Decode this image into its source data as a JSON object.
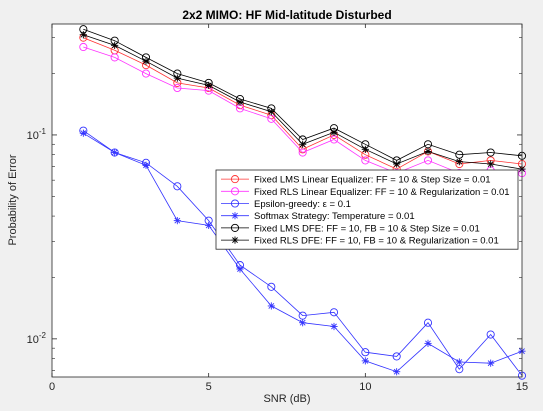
{
  "chart_data": {
    "type": "line",
    "title": "2x2 MIMO: HF Mid-latitude Disturbed",
    "xlabel": "SNR (dB)",
    "ylabel": "Probability of Error",
    "xlim": [
      0,
      15
    ],
    "ylim": [
      0.0065,
      0.35
    ],
    "yscale": "log",
    "grid": false,
    "legend_location": "east",
    "x_ticks": [
      0,
      5,
      10,
      15
    ],
    "y_ticks": [
      {
        "value": 0.01,
        "base": "10",
        "exp": "-2"
      },
      {
        "value": 0.1,
        "base": "10",
        "exp": "-1"
      }
    ],
    "x": [
      1,
      2,
      3,
      4,
      5,
      6,
      7,
      8,
      9,
      10,
      11,
      12,
      13,
      14,
      15
    ],
    "series": [
      {
        "name": "Fixed LMS Linear Equalizer: FF = 10 & Step Size = 0.01",
        "color": "#ff3333",
        "marker": "circle",
        "values": [
          0.3,
          0.26,
          0.22,
          0.18,
          0.17,
          0.14,
          0.125,
          0.085,
          0.1,
          0.08,
          0.068,
          0.083,
          0.072,
          0.075,
          0.072
        ]
      },
      {
        "name": "Fixed RLS Linear Equalizer: FF = 10 & Regularization = 0.01",
        "color": "#ff33ff",
        "marker": "circle",
        "values": [
          0.27,
          0.24,
          0.2,
          0.17,
          0.165,
          0.135,
          0.12,
          0.082,
          0.095,
          0.075,
          0.065,
          0.075,
          0.065,
          0.067,
          0.065
        ]
      },
      {
        "name": "Epsilon-greedy: ε = 0.1",
        "color": "#3333ff",
        "marker": "circle",
        "values": [
          0.105,
          0.082,
          0.073,
          0.056,
          0.038,
          0.023,
          0.018,
          0.013,
          0.0135,
          0.0086,
          0.0082,
          0.012,
          0.0071,
          0.0105,
          0.0066
        ]
      },
      {
        "name": "Softmax Strategy: Temperature = 0.01",
        "color": "#3333ff",
        "marker": "star",
        "values": [
          0.102,
          0.082,
          0.071,
          0.038,
          0.036,
          0.022,
          0.0145,
          0.012,
          0.0115,
          0.0078,
          0.0069,
          0.0095,
          0.0077,
          0.0076,
          0.0087
        ]
      },
      {
        "name": "Fixed LMS DFE: FF = 10, FB = 10 & Step Size = 0.01",
        "color": "#000000",
        "marker": "circle",
        "values": [
          0.33,
          0.29,
          0.24,
          0.2,
          0.18,
          0.15,
          0.135,
          0.095,
          0.108,
          0.09,
          0.075,
          0.09,
          0.08,
          0.082,
          0.079
        ]
      },
      {
        "name": "Fixed RLS DFE: FF = 10, FB = 10 & Regularization = 0.01",
        "color": "#000000",
        "marker": "star",
        "values": [
          0.31,
          0.275,
          0.23,
          0.19,
          0.175,
          0.145,
          0.13,
          0.09,
          0.103,
          0.085,
          0.072,
          0.083,
          0.074,
          0.072,
          0.068
        ]
      }
    ]
  }
}
